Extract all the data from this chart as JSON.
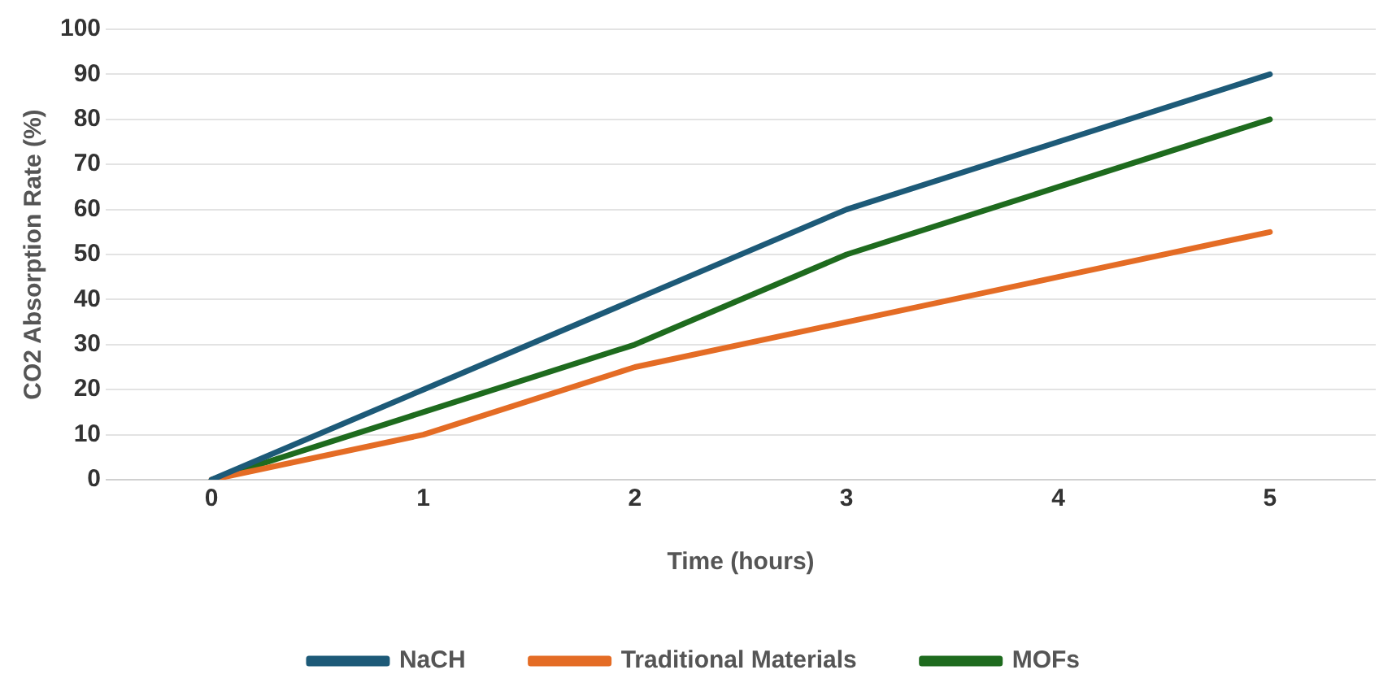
{
  "chart_data": {
    "type": "line",
    "xlabel": "Time (hours)",
    "ylabel": "CO2 Absorption Rate (%)",
    "categories": [
      "0",
      "1",
      "2",
      "3",
      "4",
      "5"
    ],
    "series": [
      {
        "name": "NaCH",
        "color": "#1d5a78",
        "values": [
          0,
          20,
          40,
          60,
          75,
          90
        ]
      },
      {
        "name": "Traditional Materials",
        "color": "#e46c25",
        "values": [
          0,
          10,
          25,
          35,
          45,
          55
        ]
      },
      {
        "name": "MOFs",
        "color": "#1e6b1e",
        "values": [
          0,
          15,
          30,
          50,
          65,
          80
        ]
      }
    ],
    "ylim": [
      0,
      100
    ],
    "yticks": [
      0,
      10,
      20,
      30,
      40,
      50,
      60,
      70,
      80,
      90,
      100
    ],
    "grid": "y",
    "legend": "bottom",
    "marker": "none",
    "line_style": "solid"
  }
}
